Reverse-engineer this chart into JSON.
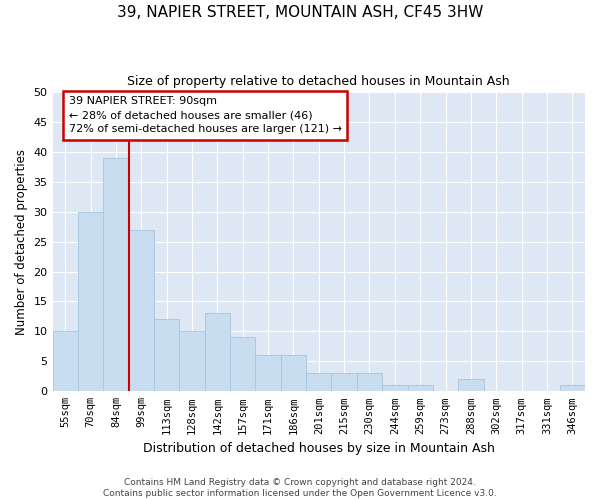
{
  "title": "39, NAPIER STREET, MOUNTAIN ASH, CF45 3HW",
  "subtitle": "Size of property relative to detached houses in Mountain Ash",
  "xlabel": "Distribution of detached houses by size in Mountain Ash",
  "ylabel": "Number of detached properties",
  "bar_labels": [
    "55sqm",
    "70sqm",
    "84sqm",
    "99sqm",
    "113sqm",
    "128sqm",
    "142sqm",
    "157sqm",
    "171sqm",
    "186sqm",
    "201sqm",
    "215sqm",
    "230sqm",
    "244sqm",
    "259sqm",
    "273sqm",
    "288sqm",
    "302sqm",
    "317sqm",
    "331sqm",
    "346sqm"
  ],
  "bar_values": [
    10,
    30,
    39,
    27,
    12,
    10,
    13,
    9,
    6,
    6,
    3,
    3,
    3,
    1,
    1,
    0,
    2,
    0,
    0,
    0,
    1
  ],
  "bar_color": "#c9ddf0",
  "bar_edgecolor": "#a8c4de",
  "bar_width": 1.0,
  "ylim": [
    0,
    50
  ],
  "yticks": [
    0,
    5,
    10,
    15,
    20,
    25,
    30,
    35,
    40,
    45,
    50
  ],
  "property_line_x": 2.5,
  "property_line_color": "#cc0000",
  "annotation_title": "39 NAPIER STREET: 90sqm",
  "annotation_line1": "← 28% of detached houses are smaller (46)",
  "annotation_line2": "72% of semi-detached houses are larger (121) →",
  "annotation_box_color": "#cc0000",
  "background_color": "#dde8f4",
  "grid_color": "#ffffff",
  "footer_line1": "Contains HM Land Registry data © Crown copyright and database right 2024.",
  "footer_line2": "Contains public sector information licensed under the Open Government Licence v3.0."
}
